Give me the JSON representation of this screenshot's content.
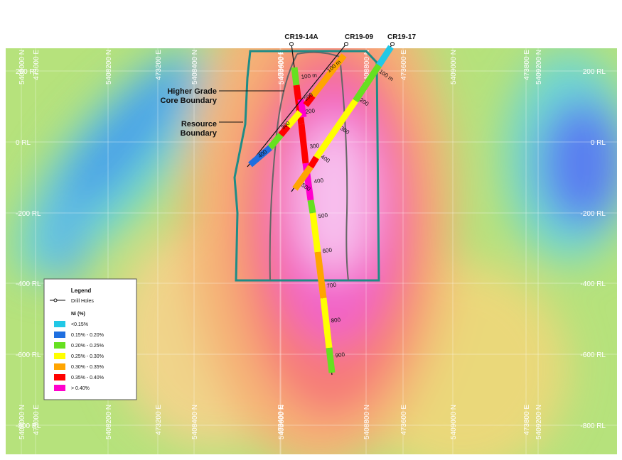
{
  "holes": [
    "CR19-14A",
    "CR19-09",
    "CR19-17"
  ],
  "annotations": {
    "core": [
      "Higher Grade",
      "Core Boundary"
    ],
    "resource": [
      "Resource",
      "Boundary"
    ]
  },
  "elevation_labels": [
    "200 RL",
    "0 RL",
    "-200 RL",
    "-400 RL",
    "-600 RL",
    "-800 RL"
  ],
  "northing_labels": [
    "5408000 N",
    "5408200 N",
    "5408400 N",
    "5408600 N",
    "5408800 N",
    "5409000 N",
    "5409200 N"
  ],
  "easting_labels": [
    "473000 E",
    "473200 E",
    "473400 E",
    "473600 E",
    "473800 E"
  ],
  "depth_labels": {
    "CR19-14A": [
      "100 m",
      "200",
      "300",
      "400",
      "500",
      "600",
      "700",
      "800",
      "900"
    ],
    "CR19-09": [
      "100 m",
      "200",
      "300",
      "400"
    ],
    "CR19-17": [
      "100 m",
      "200",
      "300",
      "400",
      "500"
    ]
  },
  "legend": {
    "title": "Legend",
    "drill_holes": "Drill Holes",
    "ni_title": "Ni (%)",
    "items": [
      {
        "label": "<0.15%",
        "color": "#22c8e6"
      },
      {
        "label": "0.15% - 0.20%",
        "color": "#1f6fe0"
      },
      {
        "label": "0.20% - 0.25%",
        "color": "#66e020"
      },
      {
        "label": "0.25% - 0.30%",
        "color": "#ffff00"
      },
      {
        "label": "0.30% - 0.35%",
        "color": "#ffa500"
      },
      {
        "label": "0.35% - 0.40%",
        "color": "#ff0000"
      },
      {
        "label": "> 0.40%",
        "color": "#ff00cc"
      }
    ]
  }
}
